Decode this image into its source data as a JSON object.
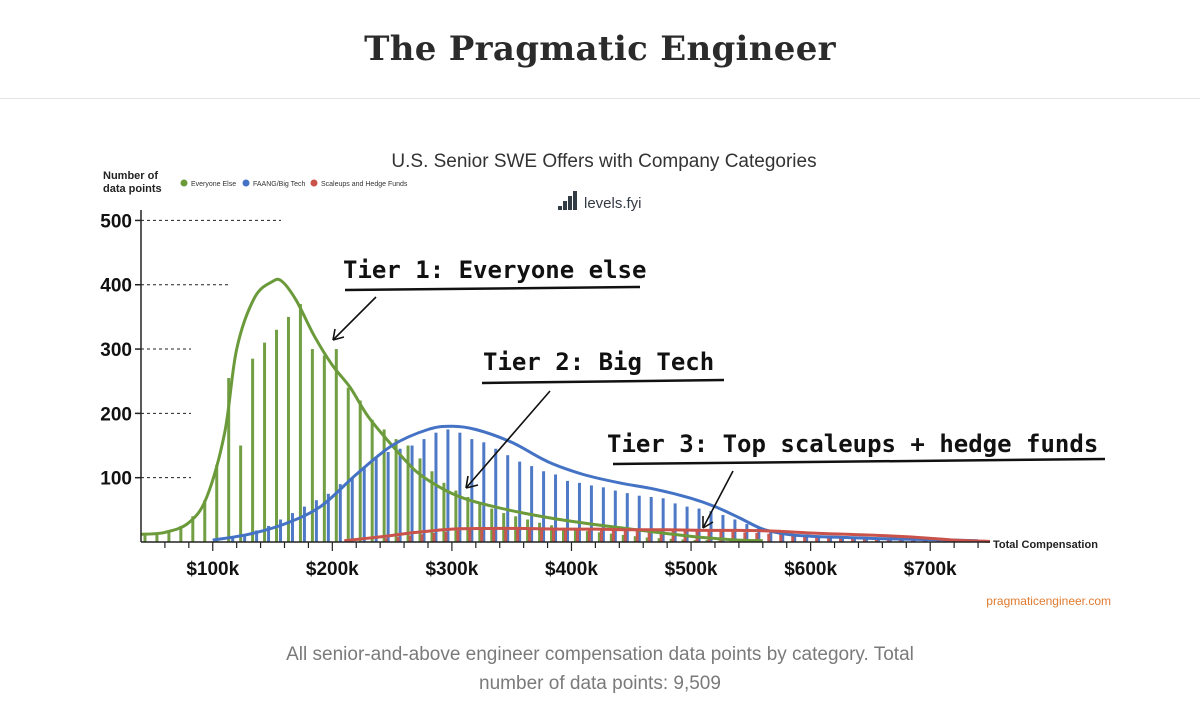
{
  "site": {
    "title": "The Pragmatic Engineer"
  },
  "caption": {
    "line1": "All senior-and-above engineer compensation data points by category. Total",
    "line2": "number of data points: 9,509"
  },
  "chart_data": {
    "type": "bar",
    "title": "U.S. Senior SWE Offers with Company Categories",
    "logo_text": "levels.fyi",
    "ylabel_line1": "Number of",
    "ylabel_line2": "data points",
    "xlabel": "Total Compensation",
    "watermark": "pragmaticengineer.com",
    "xlim": [
      40,
      750
    ],
    "ylim": [
      0,
      510
    ],
    "yticks": [
      {
        "value": 100,
        "label": "100"
      },
      {
        "value": 200,
        "label": "200"
      },
      {
        "value": 300,
        "label": "300"
      },
      {
        "value": 400,
        "label": "400"
      },
      {
        "value": 500,
        "label": "500"
      }
    ],
    "xticks": [
      {
        "value": 100,
        "label": "$100k"
      },
      {
        "value": 200,
        "label": "$200k"
      },
      {
        "value": 300,
        "label": "$300k"
      },
      {
        "value": 400,
        "label": "$400k"
      },
      {
        "value": 500,
        "label": "$500k"
      },
      {
        "value": 600,
        "label": "$600k"
      },
      {
        "value": 700,
        "label": "$700k"
      }
    ],
    "series": [
      {
        "name": "Everyone Else",
        "color": "#6b9a3a",
        "x": [
          45,
          55,
          65,
          75,
          85,
          95,
          105,
          115,
          125,
          135,
          145,
          155,
          165,
          175,
          185,
          195,
          205,
          215,
          225,
          235,
          245,
          255,
          265,
          275,
          285,
          295,
          305,
          315,
          325,
          335,
          345,
          355,
          365,
          375,
          385,
          395,
          405,
          415,
          425,
          435,
          445,
          455,
          465,
          475,
          485,
          495,
          505,
          515,
          525,
          535,
          545
        ],
        "values": [
          10,
          12,
          15,
          25,
          40,
          65,
          120,
          255,
          150,
          285,
          310,
          330,
          350,
          370,
          300,
          290,
          300,
          240,
          220,
          190,
          175,
          160,
          150,
          130,
          110,
          92,
          80,
          70,
          60,
          52,
          45,
          40,
          35,
          30,
          26,
          22,
          20,
          17,
          15,
          13,
          11,
          9,
          7,
          6,
          5,
          4,
          3,
          3,
          2,
          2,
          1
        ],
        "curve_x": [
          40,
          60,
          80,
          95,
          110,
          120,
          135,
          150,
          158,
          170,
          185,
          200,
          215,
          230,
          250,
          270,
          290,
          310,
          335,
          360,
          390,
          420,
          450,
          480,
          510,
          540,
          560
        ],
        "curve_y": [
          12,
          15,
          30,
          70,
          170,
          300,
          380,
          405,
          405,
          375,
          320,
          275,
          240,
          195,
          150,
          110,
          85,
          68,
          55,
          45,
          35,
          27,
          20,
          13,
          7,
          3,
          2
        ]
      },
      {
        "name": "FAANG/Big Tech",
        "color": "#4472c4",
        "x": [
          115,
          125,
          135,
          145,
          155,
          165,
          175,
          185,
          195,
          205,
          215,
          225,
          235,
          245,
          255,
          265,
          275,
          285,
          295,
          305,
          315,
          325,
          335,
          345,
          355,
          365,
          375,
          385,
          395,
          405,
          415,
          425,
          435,
          445,
          455,
          465,
          475,
          485,
          495,
          505,
          515,
          525,
          535,
          545,
          555,
          565,
          575,
          585,
          595,
          605,
          615,
          625,
          635,
          645,
          655,
          665,
          675,
          685,
          695,
          705
        ],
        "values": [
          8,
          12,
          18,
          25,
          35,
          45,
          55,
          65,
          75,
          90,
          100,
          115,
          130,
          140,
          145,
          150,
          160,
          170,
          175,
          170,
          160,
          155,
          145,
          135,
          125,
          118,
          110,
          105,
          95,
          92,
          88,
          85,
          80,
          76,
          72,
          70,
          68,
          60,
          55,
          52,
          48,
          42,
          35,
          28,
          22,
          18,
          14,
          12,
          10,
          9,
          8,
          7,
          6,
          5,
          5,
          4,
          4,
          3,
          3,
          2
        ],
        "curve_x": [
          100,
          130,
          160,
          190,
          220,
          250,
          280,
          300,
          320,
          350,
          380,
          410,
          440,
          470,
          500,
          520,
          540,
          560,
          580,
          600,
          630,
          660,
          690,
          720,
          740
        ],
        "curve_y": [
          3,
          12,
          28,
          55,
          105,
          150,
          175,
          180,
          175,
          155,
          125,
          105,
          92,
          82,
          68,
          55,
          38,
          20,
          12,
          9,
          7,
          5,
          4,
          3,
          2
        ]
      },
      {
        "name": "Scaleups and Hedge Funds",
        "color": "#c9524a",
        "x": [
          245,
          255,
          265,
          275,
          285,
          295,
          305,
          315,
          325,
          335,
          345,
          355,
          365,
          375,
          385,
          395,
          405,
          415,
          425,
          435,
          445,
          455,
          465,
          475,
          485,
          495,
          505,
          515,
          525,
          535,
          545,
          555,
          565,
          575,
          585,
          595,
          605,
          615,
          625,
          635,
          645,
          655,
          665,
          675,
          685,
          695
        ],
        "values": [
          6,
          8,
          10,
          12,
          14,
          16,
          18,
          19,
          20,
          20,
          21,
          21,
          21,
          20,
          20,
          20,
          19,
          19,
          19,
          19,
          18,
          18,
          18,
          18,
          18,
          18,
          17,
          17,
          17,
          16,
          15,
          14,
          13,
          12,
          11,
          10,
          9,
          8,
          8,
          7,
          6,
          5,
          4,
          3,
          2,
          2
        ],
        "curve_x": [
          210,
          240,
          270,
          300,
          330,
          360,
          390,
          420,
          450,
          480,
          510,
          540,
          570,
          600,
          630,
          660,
          690,
          720,
          750
        ],
        "curve_y": [
          2,
          8,
          15,
          20,
          21,
          21,
          20,
          20,
          19,
          19,
          18,
          18,
          17,
          14,
          12,
          10,
          7,
          3,
          1
        ]
      }
    ],
    "annotations": [
      {
        "text": "Tier 1: Everyone else"
      },
      {
        "text": "Tier 2: Big Tech"
      },
      {
        "text": "Tier 3: Top scaleups + hedge funds"
      }
    ]
  }
}
